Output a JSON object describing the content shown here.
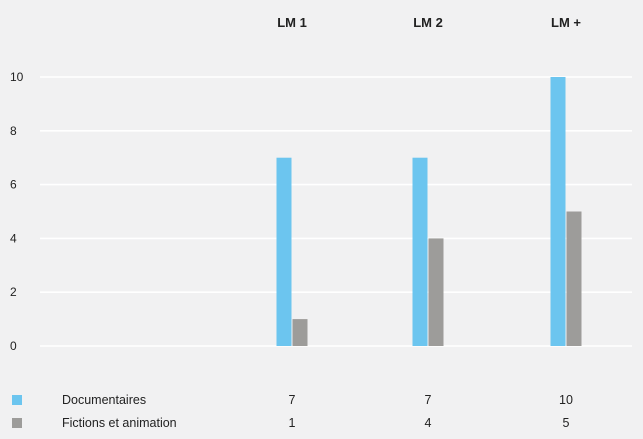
{
  "chart_data": {
    "type": "bar",
    "categories": [
      "LM 1",
      "LM 2",
      "LM +"
    ],
    "series": [
      {
        "name": "Documentaires",
        "values": [
          7,
          7,
          10
        ],
        "color": "#6cc5ef"
      },
      {
        "name": "Fictions et animation",
        "values": [
          1,
          4,
          5
        ],
        "color": "#9d9c9a"
      }
    ],
    "yticks": [
      0,
      2,
      4,
      6,
      8,
      10
    ],
    "ylim": [
      0,
      10
    ],
    "grid": true,
    "legend_placement": "bottom-table",
    "background": "#f1f1f2"
  }
}
